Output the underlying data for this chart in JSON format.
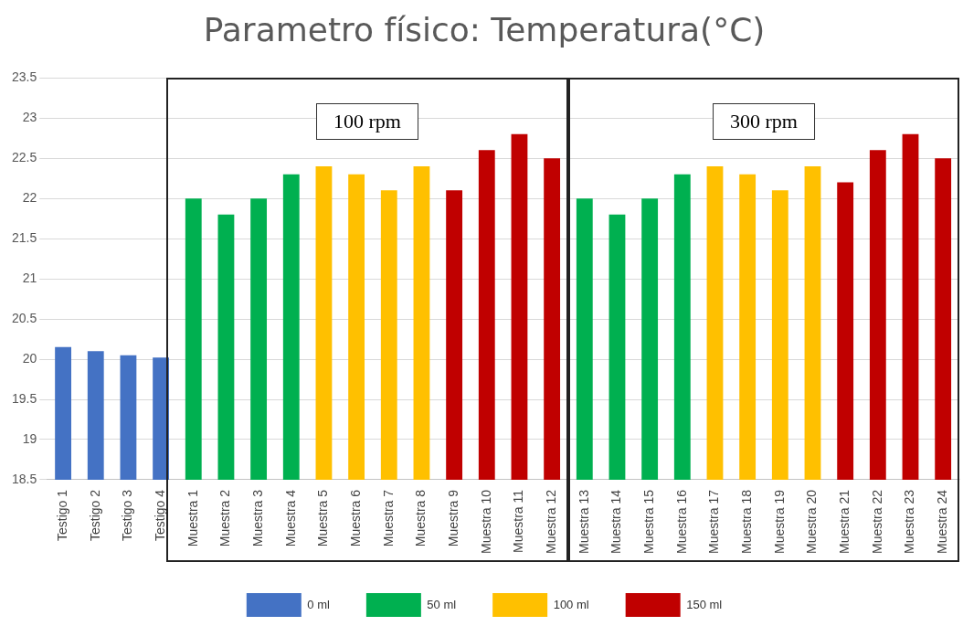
{
  "chart_data": {
    "type": "bar",
    "title": "Parametro físico: Temperatura(°C)",
    "categories": [
      "Testigo 1",
      "Testigo 2",
      "Testigo 3",
      "Testigo 4",
      "Muestra 1",
      "Muestra 2",
      "Muestra 3",
      "Muestra 4",
      "Muestra 5",
      "Muestra 6",
      "Muestra 7",
      "Muestra 8",
      "Muestra 9",
      "Muestra 10",
      "Muestra 11",
      "Muestra 12",
      "Muestra 13",
      "Muestra 14",
      "Muestra 15",
      "Muestra 16",
      "Muestra 17",
      "Muestra 18",
      "Muestra 19",
      "Muestra 20",
      "Muestra 21",
      "Muestra 22",
      "Muestra 23",
      "Muestra 24"
    ],
    "stacked": true,
    "series": [
      {
        "name": "0 ml",
        "color": "#4472c4",
        "values": [
          20.15,
          20.1,
          20.05,
          20.02,
          null,
          null,
          null,
          null,
          null,
          null,
          null,
          null,
          null,
          null,
          null,
          null,
          null,
          null,
          null,
          null,
          null,
          null,
          null,
          null,
          null,
          null,
          null,
          null
        ]
      },
      {
        "name": "50 ml",
        "color": "#00b050",
        "values": [
          null,
          null,
          null,
          null,
          22.0,
          21.8,
          22.0,
          22.3,
          null,
          null,
          null,
          null,
          null,
          null,
          null,
          null,
          22.0,
          21.8,
          22.0,
          22.3,
          null,
          null,
          null,
          null,
          null,
          null,
          null,
          null
        ]
      },
      {
        "name": "100 ml",
        "color": "#ffc000",
        "values": [
          null,
          null,
          null,
          null,
          null,
          null,
          null,
          null,
          22.4,
          22.3,
          22.1,
          22.4,
          null,
          null,
          null,
          null,
          null,
          null,
          null,
          null,
          22.4,
          22.3,
          22.1,
          22.4,
          null,
          null,
          null,
          null
        ]
      },
      {
        "name": "150 ml",
        "color": "#c00000",
        "values": [
          null,
          null,
          null,
          null,
          null,
          null,
          null,
          null,
          null,
          null,
          null,
          null,
          22.1,
          22.6,
          22.8,
          22.5,
          null,
          null,
          null,
          null,
          null,
          null,
          null,
          null,
          22.2,
          22.6,
          22.8,
          22.5
        ]
      }
    ],
    "ylim": [
      18.5,
      23.5
    ],
    "yticks": [
      18.5,
      19,
      19.5,
      20,
      20.5,
      21,
      21.5,
      22,
      22.5,
      23,
      23.5
    ],
    "grid": "y",
    "legend": "bottom",
    "annotations": [
      "100 rpm",
      "300 rpm"
    ]
  }
}
